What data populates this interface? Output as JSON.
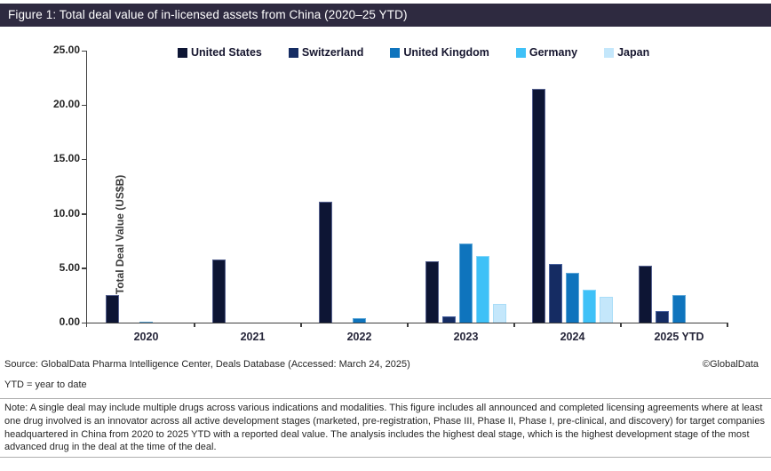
{
  "title_bar": {
    "text": "Figure 1: Total deal value of in-licensed assets from China (2020–25 YTD)",
    "background": "#2e2a40"
  },
  "chart_data": {
    "type": "bar",
    "title": "Figure 1: Total deal value of in-licensed assets from China (2020–25 YTD)",
    "ylabel": "Total Deal Value (US$B)",
    "xlabel": "",
    "ylim": [
      0,
      25
    ],
    "ytick_values": [
      0,
      5,
      10,
      15,
      20,
      25
    ],
    "ytick_labels": [
      "0.00",
      "5.00",
      "10.00",
      "15.00",
      "20.00",
      "25.00"
    ],
    "grid": false,
    "legend_position": "top",
    "categories": [
      "2020",
      "2021",
      "2022",
      "2023",
      "2024",
      "2025 YTD"
    ],
    "series": [
      {
        "name": "United States",
        "color": "#0d1534",
        "border": "#56618f",
        "values": [
          2.5,
          5.8,
          11.1,
          5.6,
          21.5,
          5.2
        ]
      },
      {
        "name": "Switzerland",
        "color": "#152c63",
        "border": "#4a63a0",
        "values": [
          0,
          0,
          0,
          0.6,
          5.4,
          1.1
        ]
      },
      {
        "name": "United Kingdom",
        "color": "#0f74bd",
        "border": "#5fa8d8",
        "values": [
          0.1,
          0,
          0.4,
          7.3,
          4.6,
          2.5
        ]
      },
      {
        "name": "Germany",
        "color": "#3fc1f7",
        "border": "#86d7fa",
        "values": [
          0,
          0,
          0,
          6.1,
          3.0,
          0
        ]
      },
      {
        "name": "Japan",
        "color": "#c4e7fb",
        "border": "#a9ddf8",
        "values": [
          0,
          0,
          0,
          1.7,
          2.4,
          0
        ]
      }
    ],
    "axis_color": "#3f3f3f"
  },
  "footer": {
    "source": "Source: GlobalData Pharma Intelligence Center, Deals Database (Accessed: March 24, 2025)",
    "copyright": "©GlobalData",
    "ytd_note": "YTD = year to date",
    "note": "Note: A single deal may include multiple drugs across various indications and modalities. This figure includes all announced and completed licensing agreements where at least one drug involved is an innovator across all active development stages (marketed, pre-registration, Phase III, Phase II, Phase I, pre-clinical, and discovery) for target companies headquartered in China from 2020 to 2025 YTD with a reported deal value. The analysis includes the highest deal stage, which is the highest development stage of the most advanced drug in the deal at the time of the deal."
  }
}
